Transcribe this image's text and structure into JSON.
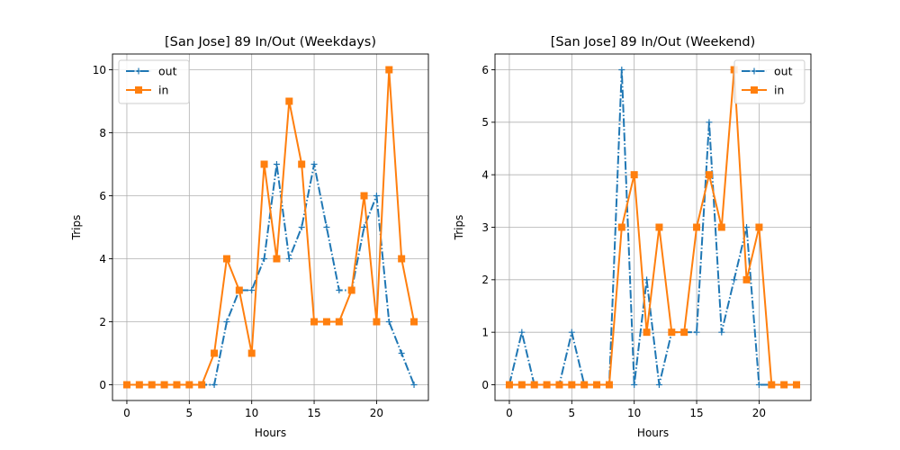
{
  "chart_data": [
    {
      "type": "line",
      "title": "[San Jose] 89 In/Out (Weekdays)",
      "xlabel": "Hours",
      "ylabel": "Trips",
      "xlim": [
        -1.15,
        24.15
      ],
      "ylim": [
        -0.5,
        10.5
      ],
      "xticks": [
        0,
        5,
        10,
        15,
        20
      ],
      "yticks": [
        0,
        2,
        4,
        6,
        8,
        10
      ],
      "grid": true,
      "legend_position": "top-left",
      "x": [
        0,
        1,
        2,
        3,
        4,
        5,
        6,
        7,
        8,
        9,
        10,
        11,
        12,
        13,
        14,
        15,
        16,
        17,
        18,
        19,
        20,
        21,
        22,
        23
      ],
      "series": [
        {
          "name": "out",
          "color": "#1f77b4",
          "line_style": "dashdot",
          "marker": "plus",
          "values": [
            0,
            0,
            0,
            0,
            0,
            0,
            0,
            0,
            2,
            3,
            3,
            4,
            7,
            4,
            5,
            7,
            5,
            3,
            3,
            5,
            6,
            2,
            1,
            0
          ]
        },
        {
          "name": "in",
          "color": "#ff7f0e",
          "line_style": "solid",
          "marker": "square",
          "values": [
            0,
            0,
            0,
            0,
            0,
            0,
            0,
            1,
            4,
            3,
            1,
            7,
            4,
            9,
            7,
            2,
            2,
            2,
            3,
            6,
            2,
            10,
            4,
            2
          ]
        }
      ]
    },
    {
      "type": "line",
      "title": "[San Jose] 89 In/Out (Weekend)",
      "xlabel": "Hours",
      "ylabel": "Trips",
      "xlim": [
        -1.15,
        24.15
      ],
      "ylim": [
        -0.3,
        6.3
      ],
      "xticks": [
        0,
        5,
        10,
        15,
        20
      ],
      "yticks": [
        0,
        1,
        2,
        3,
        4,
        5,
        6
      ],
      "grid": true,
      "legend_position": "top-right",
      "x": [
        0,
        1,
        2,
        3,
        4,
        5,
        6,
        7,
        8,
        9,
        10,
        11,
        12,
        13,
        14,
        15,
        16,
        17,
        18,
        19,
        20,
        21,
        22,
        23
      ],
      "series": [
        {
          "name": "out",
          "color": "#1f77b4",
          "line_style": "dashdot",
          "marker": "plus",
          "values": [
            0,
            1,
            0,
            0,
            0,
            1,
            0,
            0,
            0,
            6,
            0,
            2,
            0,
            1,
            1,
            1,
            5,
            1,
            2,
            3,
            0,
            0,
            0,
            0
          ]
        },
        {
          "name": "in",
          "color": "#ff7f0e",
          "line_style": "solid",
          "marker": "square",
          "values": [
            0,
            0,
            0,
            0,
            0,
            0,
            0,
            0,
            0,
            3,
            4,
            1,
            3,
            1,
            1,
            3,
            4,
            3,
            6,
            2,
            3,
            0,
            0,
            0
          ]
        }
      ]
    }
  ]
}
